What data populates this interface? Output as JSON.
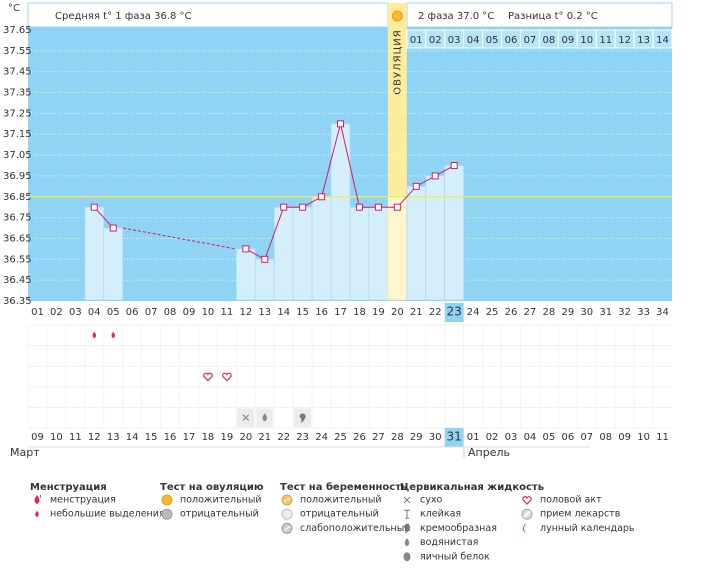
{
  "chart_data": {
    "type": "line",
    "y_unit": "°C",
    "phase1_summary": "Средняя t° 1 фаза 36.8 °C",
    "phase2_summary": "2 фаза 37.0 °C",
    "difference": "Разница t° 0.2 °C",
    "ovulation_label": "ОВУЛЯЦИЯ",
    "ovulation_index": 19,
    "coverline": 36.85,
    "ylim": [
      36.35,
      37.65
    ],
    "yticks": [
      36.35,
      36.45,
      36.55,
      36.65,
      36.75,
      36.85,
      36.95,
      37.05,
      37.15,
      37.25,
      37.35,
      37.45,
      37.55,
      37.65
    ],
    "grid": true,
    "color": "#d81b60",
    "categories": [
      "01",
      "02",
      "03",
      "04",
      "05",
      "06",
      "07",
      "08",
      "09",
      "10",
      "11",
      "12",
      "13",
      "14",
      "15",
      "16",
      "17",
      "18",
      "19",
      "20",
      "21",
      "22",
      "23",
      "24",
      "25",
      "26",
      "27",
      "28",
      "29",
      "30",
      "31",
      "32",
      "33",
      "34"
    ],
    "values": [
      null,
      null,
      null,
      36.8,
      36.7,
      null,
      null,
      null,
      null,
      null,
      null,
      36.6,
      36.55,
      36.8,
      36.8,
      36.85,
      37.2,
      36.8,
      36.8,
      36.8,
      36.9,
      36.95,
      37.0,
      null,
      null,
      null,
      null,
      null,
      null,
      null,
      null,
      null,
      null,
      null
    ],
    "post_ovulation_days": [
      "01",
      "02",
      "03",
      "04",
      "05",
      "06",
      "07",
      "08",
      "09",
      "10",
      "11",
      "12",
      "13",
      "14"
    ],
    "selected_index": 22,
    "dates": [
      "09",
      "10",
      "11",
      "12",
      "13",
      "14",
      "15",
      "16",
      "17",
      "18",
      "19",
      "20",
      "21",
      "22",
      "23",
      "24",
      "25",
      "26",
      "27",
      "28",
      "29",
      "30",
      "31",
      "01",
      "02",
      "03",
      "04",
      "05",
      "06",
      "07",
      "08",
      "09",
      "10",
      "11"
    ],
    "holiday_indices": [
      0,
      6,
      7,
      13,
      14,
      20,
      21,
      27,
      28
    ],
    "months": [
      "Март",
      "Апрель"
    ],
    "symptoms": [
      {
        "icon": "spotting",
        "row": 0,
        "days": [
          3,
          4
        ]
      },
      {
        "icon": "heart",
        "row": 2,
        "days": [
          9,
          10
        ]
      },
      {
        "icon": "dry",
        "row": 4,
        "days": [
          11
        ]
      },
      {
        "icon": "watery",
        "row": 4,
        "days": [
          12
        ]
      },
      {
        "icon": "creamy",
        "row": 4,
        "days": [
          14
        ]
      }
    ],
    "legend": [
      {
        "title": "Менструация",
        "items": [
          {
            "label": "менструация",
            "icon": "menstruation"
          },
          {
            "label": "небольшие выделения",
            "icon": "spotting"
          }
        ]
      },
      {
        "title": "Тест на овуляцию",
        "items": [
          {
            "label": "положительный",
            "icon": "ov-pos"
          },
          {
            "label": "отрицательный",
            "icon": "ov-neg"
          }
        ]
      },
      {
        "title": "Тест на беременность",
        "items": [
          {
            "label": "положительный",
            "icon": "pr-pos"
          },
          {
            "label": "отрицательный",
            "icon": "pr-neg"
          },
          {
            "label": "слабоположительный",
            "icon": "pr-weak"
          }
        ]
      },
      {
        "title": "Цервикальная жидкость",
        "items": [
          {
            "label": "сухо",
            "icon": "dry"
          },
          {
            "label": "клейкая",
            "icon": "sticky"
          },
          {
            "label": "кремообразная",
            "icon": "creamy"
          },
          {
            "label": "водянистая",
            "icon": "watery"
          },
          {
            "label": "яичный белок",
            "icon": "eggwhite"
          }
        ]
      },
      {
        "items": [
          {
            "label": "половой акт",
            "icon": "heart"
          },
          {
            "label": "прием лекарств",
            "icon": "pill"
          },
          {
            "label": "лунный календарь",
            "icon": "moon"
          }
        ]
      }
    ]
  }
}
